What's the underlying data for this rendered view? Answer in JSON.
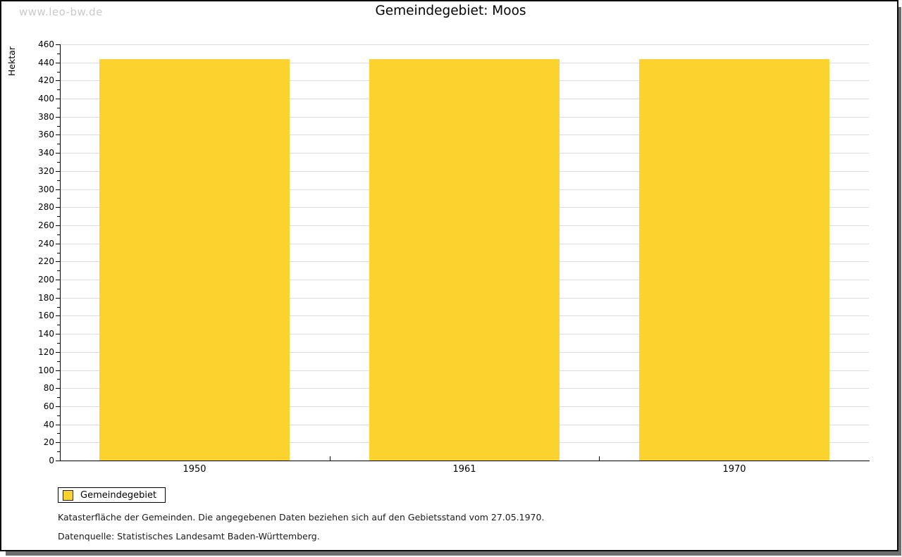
{
  "watermark": "www.leo-bw.de",
  "title": "Gemeindegebiet: Moos",
  "chart_data": {
    "type": "bar",
    "title": "Gemeindegebiet: Moos",
    "categories": [
      "1950",
      "1961",
      "1970"
    ],
    "series": [
      {
        "name": "Gemeindegebiet",
        "values": [
          444,
          444,
          444
        ]
      }
    ],
    "xlabel": "",
    "ylabel": "Hektar",
    "ylim": [
      0,
      460
    ],
    "ytick_step": 20,
    "yminor_step": 10,
    "grid": true,
    "legend_position": "bottom-left",
    "bar_color": "#FCD32E"
  },
  "legend": {
    "label": "Gemeindegebiet",
    "swatch_color": "#FCD32E"
  },
  "footnotes": [
    "Katasterfläche der Gemeinden. Die angegebenen Daten beziehen sich auf den Gebietsstand vom 27.05.1970.",
    "Datenquelle: Statistisches Landesamt Baden-Württemberg."
  ]
}
